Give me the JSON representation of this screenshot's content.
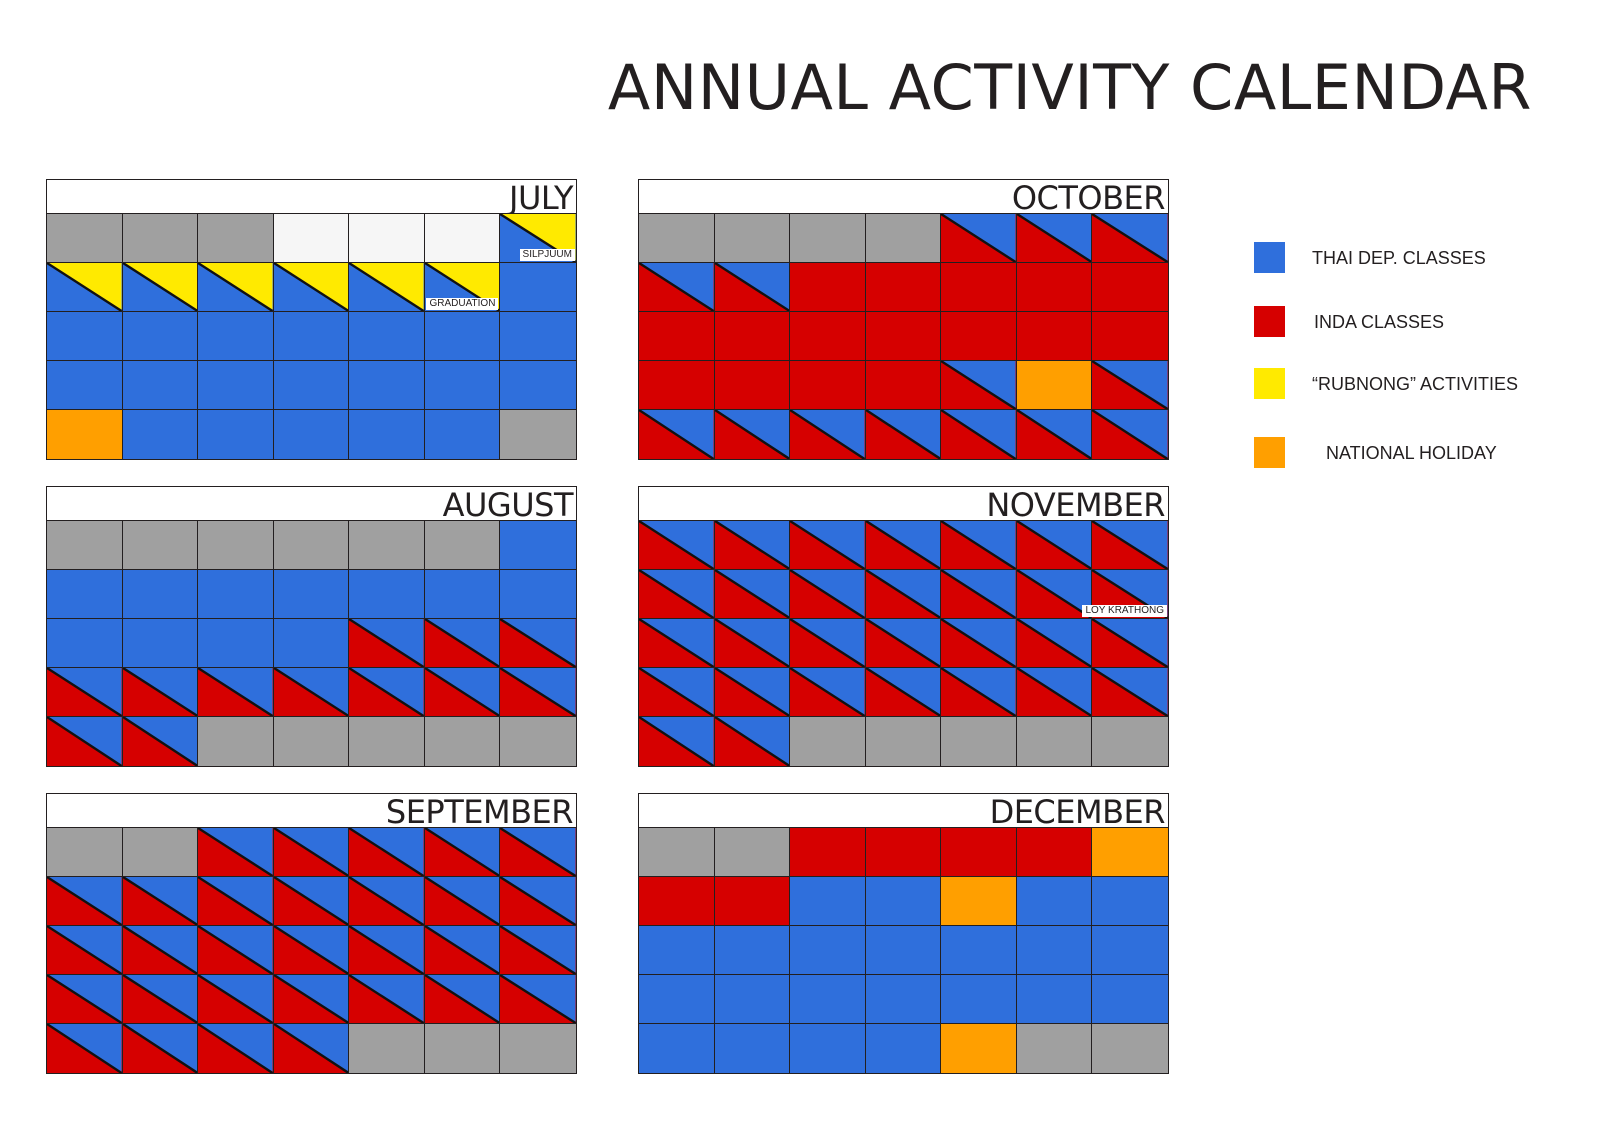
{
  "title": "ANNUAL ACTIVITY CALENDAR",
  "colors": {
    "B": "#2f6fdc",
    "R": "#d60000",
    "Y": "#ffea00",
    "O": "#ff9f00",
    "G": "#a0a0a0",
    "W": "#f6f6f6"
  },
  "legend": [
    {
      "label": "THAI DEP. CLASSES",
      "color": "B"
    },
    {
      "label": "INDA CLASSES",
      "color": "R"
    },
    {
      "label": "“RUBNONG” ACTIVITIES",
      "color": "Y"
    },
    {
      "label": "NATIONAL HOLIDAY",
      "color": "O"
    }
  ],
  "months": [
    {
      "name": "JULY",
      "cells": [
        "G",
        "G",
        "G",
        "W",
        "W",
        "W",
        "B/Y",
        "B/Y",
        "B/Y",
        "B/Y",
        "B/Y",
        "B/Y",
        "B/Y",
        "B",
        "B",
        "B",
        "B",
        "B",
        "B",
        "B",
        "B",
        "B",
        "B",
        "B",
        "B",
        "B",
        "B",
        "B",
        "O",
        "B",
        "B",
        "B",
        "B",
        "B",
        "G"
      ],
      "notes": [
        {
          "cell": 6,
          "text": "SILPJUUM"
        },
        {
          "cell": 12,
          "text": "GRADUATION"
        }
      ]
    },
    {
      "name": "AUGUST",
      "cells": [
        "G",
        "G",
        "G",
        "G",
        "G",
        "G",
        "B",
        "B",
        "B",
        "B",
        "B",
        "B",
        "B",
        "B",
        "B",
        "B",
        "B",
        "B",
        "R/B",
        "R/B",
        "R/B",
        "R/B",
        "R/B",
        "R/B",
        "R/B",
        "R/B",
        "R/B",
        "R/B",
        "R/B",
        "R/B",
        "G",
        "G",
        "G",
        "G",
        "G"
      ],
      "notes": []
    },
    {
      "name": "SEPTEMBER",
      "cells": [
        "G",
        "G",
        "R/B",
        "R/B",
        "R/B",
        "R/B",
        "R/B",
        "R/B",
        "R/B",
        "R/B",
        "R/B",
        "R/B",
        "R/B",
        "R/B",
        "R/B",
        "R/B",
        "R/B",
        "R/B",
        "R/B",
        "R/B",
        "R/B",
        "R/B",
        "R/B",
        "R/B",
        "R/B",
        "R/B",
        "R/B",
        "R/B",
        "R/B",
        "R/B",
        "R/B",
        "R/B",
        "G",
        "G",
        "G"
      ],
      "notes": []
    },
    {
      "name": "OCTOBER",
      "cells": [
        "G",
        "G",
        "G",
        "G",
        "R/B",
        "R/B",
        "R/B",
        "R/B",
        "R/B",
        "R",
        "R",
        "R",
        "R",
        "R",
        "R",
        "R",
        "R",
        "R",
        "R",
        "R",
        "R",
        "R",
        "R",
        "R",
        "R",
        "R/B",
        "O",
        "R/B",
        "R/B",
        "R/B",
        "R/B",
        "R/B",
        "R/B",
        "R/B",
        "R/B"
      ],
      "notes": []
    },
    {
      "name": "NOVEMBER",
      "cells": [
        "R/B",
        "R/B",
        "R/B",
        "R/B",
        "R/B",
        "R/B",
        "R/B",
        "R/B",
        "R/B",
        "R/B",
        "R/B",
        "R/B",
        "R/B",
        "R/B",
        "R/B",
        "R/B",
        "R/B",
        "R/B",
        "R/B",
        "R/B",
        "R/B",
        "R/B",
        "R/B",
        "R/B",
        "R/B",
        "R/B",
        "R/B",
        "R/B",
        "R/B",
        "R/B",
        "G",
        "G",
        "G",
        "G",
        "G"
      ],
      "notes": [
        {
          "cell": 13,
          "text": "LOY KRATHONG"
        }
      ]
    },
    {
      "name": "DECEMBER",
      "cells": [
        "G",
        "G",
        "R",
        "R",
        "R",
        "R",
        "O",
        "R",
        "R",
        "B",
        "B",
        "O",
        "B",
        "B",
        "B",
        "B",
        "B",
        "B",
        "B",
        "B",
        "B",
        "B",
        "B",
        "B",
        "B",
        "B",
        "B",
        "B",
        "B",
        "B",
        "B",
        "B",
        "O",
        "G",
        "G"
      ],
      "notes": []
    }
  ]
}
